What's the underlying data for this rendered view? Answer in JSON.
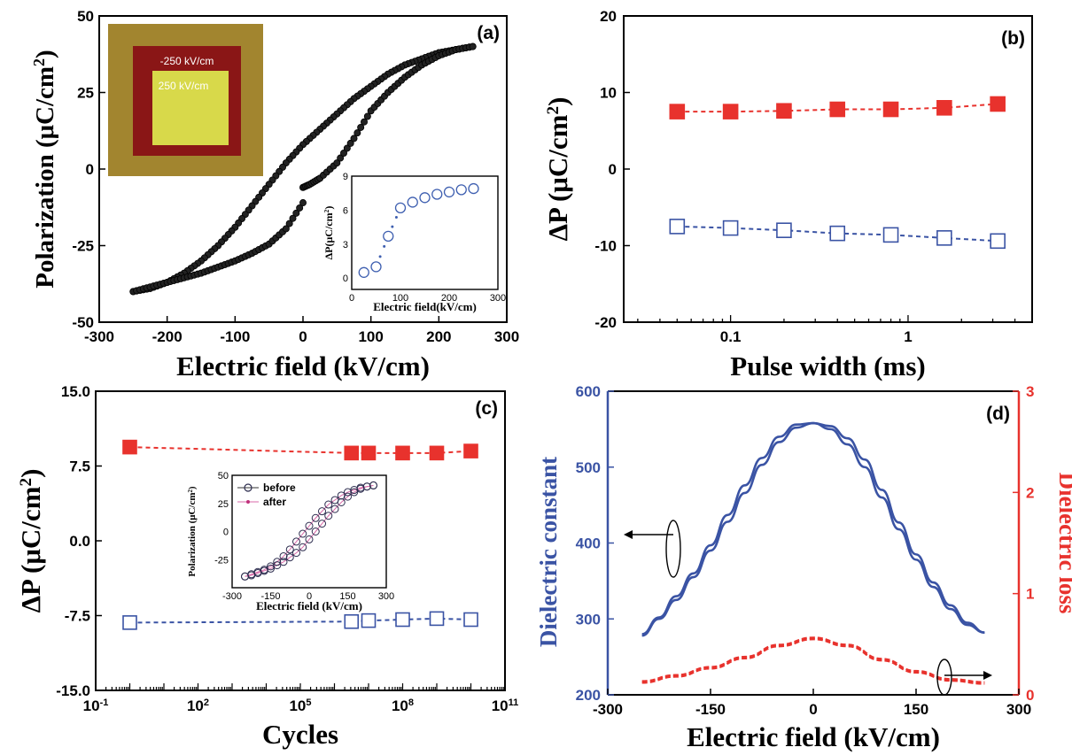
{
  "colors": {
    "blue": "#3a53a4",
    "red": "#e8322d",
    "black": "#000000",
    "inset_photo_outer": "#a2852f",
    "inset_photo_frame": "#8a1616",
    "inset_photo_center": "#d8d94a",
    "inset_photo_text": "#ffffff",
    "inset_blue": "#3e5fb0"
  },
  "chart_data": [
    {
      "id": "a",
      "type": "scatter",
      "panel_label": "(a)",
      "xlabel": "Electric field (kV/cm)",
      "ylabel_main": "Polarization (μC/cm",
      "ylabel_sup": "2",
      "ylabel_end": ")",
      "xlim": [
        -300,
        300
      ],
      "ylim": [
        -50,
        50
      ],
      "xticks": [
        -300,
        -200,
        -100,
        0,
        100,
        200,
        300
      ],
      "yticks": [
        -50,
        -25,
        0,
        25,
        50
      ],
      "marker": "filled-circle-black",
      "series": [
        {
          "x": [
            250,
            225,
            200,
            175,
            150,
            125,
            100,
            75,
            50,
            25,
            0,
            -25,
            -50,
            -75,
            -100,
            -125,
            -150,
            -175,
            -200,
            -225,
            -250
          ],
          "y": [
            40,
            39,
            38,
            36,
            34,
            31,
            27,
            23,
            18,
            13,
            8,
            2,
            -5,
            -12,
            -19,
            -25,
            -30,
            -34,
            -37,
            -39,
            -40
          ]
        },
        {
          "x": [
            -250,
            -225,
            -200,
            -175,
            -150,
            -125,
            -100,
            -75,
            -50,
            -25,
            0
          ],
          "y": [
            -40,
            -38.5,
            -37,
            -35.5,
            -34,
            -32,
            -30,
            -27.5,
            -24.5,
            -19.5,
            -11
          ]
        },
        {
          "x": [
            0,
            10,
            25,
            50,
            75,
            100,
            125,
            150,
            175,
            200,
            225,
            250
          ],
          "y": [
            -6,
            -5,
            -3,
            2,
            10,
            19,
            25,
            30,
            34,
            37,
            39,
            40
          ]
        }
      ],
      "inset_photo": {
        "label_top": "-250 kV/cm",
        "label_center": "250 kV/cm"
      },
      "inset_chart": {
        "type": "scatter",
        "marker": "open-circle-blue",
        "xlabel": "Electric field(kV/cm)",
        "ylabel_main": "ΔP(μC/cm",
        "ylabel_sup": "2",
        "ylabel_end": ")",
        "xlim": [
          0,
          300
        ],
        "ylim": [
          -1,
          9
        ],
        "xticks": [
          0,
          100,
          200,
          300
        ],
        "yticks": [
          0,
          3,
          6,
          9
        ],
        "x": [
          25,
          50,
          75,
          100,
          125,
          150,
          175,
          200,
          225,
          250
        ],
        "y": [
          0.5,
          1.0,
          3.7,
          6.2,
          6.7,
          7.1,
          7.4,
          7.6,
          7.8,
          7.9
        ]
      }
    },
    {
      "id": "b",
      "type": "line",
      "panel_label": "(b)",
      "xlabel": "Pulse width (ms)",
      "ylabel_main": "ΔP (μC/cm",
      "ylabel_sup": "2",
      "ylabel_end": ")",
      "xscale": "log",
      "xlim": [
        0.025,
        5
      ],
      "ylim": [
        -20,
        20
      ],
      "xticks": [
        0.1,
        1
      ],
      "xtick_labels": [
        "0.1",
        "1"
      ],
      "yticks": [
        -20,
        -10,
        0,
        10,
        20
      ],
      "x": [
        0.05,
        0.1,
        0.2,
        0.4,
        0.8,
        1.6,
        3.2
      ],
      "series": [
        {
          "style": "filled-square-red",
          "values": [
            7.5,
            7.5,
            7.6,
            7.8,
            7.8,
            8.0,
            8.5
          ]
        },
        {
          "style": "open-square-blue",
          "values": [
            -7.5,
            -7.7,
            -8.0,
            -8.4,
            -8.6,
            -9.0,
            -9.4
          ]
        }
      ]
    },
    {
      "id": "c",
      "type": "line",
      "panel_label": "(c)",
      "xlabel": "Cycles",
      "ylabel_main": "ΔP (μC/cm",
      "ylabel_sup": "2",
      "ylabel_end": ")",
      "xscale": "log",
      "xlim_exp": [
        -1,
        11
      ],
      "ylim": [
        -15,
        15
      ],
      "xticks_exp": [
        -1,
        2,
        5,
        8,
        11
      ],
      "xtick_base": "10",
      "yticks": [
        -15.0,
        -7.5,
        0.0,
        7.5,
        15.0
      ],
      "ytick_labels": [
        "-15.0",
        "-7.5",
        "0.0",
        "7.5",
        "15.0"
      ],
      "x_exp": [
        0,
        6.5,
        7,
        7.5,
        8,
        8.5,
        9,
        10
      ],
      "series": [
        {
          "style": "filled-square-red",
          "x_exp": [
            0,
            6.5,
            7,
            8,
            9,
            10
          ],
          "values": [
            9.4,
            8.8,
            8.8,
            8.8,
            8.8,
            9.0
          ]
        },
        {
          "style": "open-square-blue",
          "x_exp": [
            0,
            6.5,
            7,
            8,
            9,
            10
          ],
          "values": [
            -8.2,
            -8.1,
            -8.0,
            -7.9,
            -7.8,
            -7.9
          ]
        }
      ],
      "inset_chart": {
        "type": "scatter",
        "xlabel": "Electric field (kV/cm)",
        "ylabel_main": "Polarization (μC/cm",
        "ylabel_sup": "2",
        "ylabel_end": ")",
        "xlim": [
          -300,
          300
        ],
        "ylim": [
          -50,
          50
        ],
        "xticks": [
          -300,
          -150,
          0,
          150,
          300
        ],
        "yticks": [
          -25,
          0,
          25,
          50
        ],
        "ytick_labels": [
          "-25",
          "0",
          "25",
          "50"
        ],
        "legend": [
          "before",
          "after"
        ],
        "x_upper": [
          -250,
          -225,
          -200,
          -175,
          -150,
          -125,
          -100,
          -75,
          -50,
          -25,
          0,
          25,
          50,
          75,
          100,
          125,
          150,
          175,
          200,
          225,
          250
        ],
        "y_upper": [
          -40,
          -38,
          -36,
          -34,
          -31,
          -27,
          -22,
          -16,
          -9,
          -2,
          5,
          12,
          18,
          24,
          28,
          32,
          35,
          37,
          39,
          40,
          41
        ],
        "x_lower": [
          -250,
          -225,
          -200,
          -175,
          -150,
          -125,
          -100,
          -75,
          -50,
          -25,
          0,
          25,
          50,
          75,
          100,
          125,
          150,
          175,
          200,
          225,
          250
        ],
        "y_lower": [
          -40,
          -39,
          -37,
          -35,
          -33,
          -30,
          -27,
          -23,
          -19,
          -14,
          -7,
          0,
          7,
          14,
          20,
          26,
          31,
          35,
          38,
          40,
          41
        ]
      }
    },
    {
      "id": "d",
      "type": "line",
      "panel_label": "(d)",
      "xlabel": "Electric field (kV/cm)",
      "ylabel_left": "Dielectric constant",
      "ylabel_right": "Dielectric loss",
      "xlim": [
        -300,
        300
      ],
      "ylim_left": [
        200,
        600
      ],
      "ylim_right": [
        0,
        3
      ],
      "xticks": [
        -300,
        -150,
        0,
        150,
        300
      ],
      "yticks_left": [
        200,
        300,
        400,
        500,
        600
      ],
      "yticks_right": [
        0,
        1,
        2,
        3
      ],
      "series": [
        {
          "name": "",
          "axis": "left",
          "style": "solid-blue",
          "x": [
            -250,
            -225,
            -200,
            -175,
            -150,
            -125,
            -100,
            -75,
            -50,
            -25,
            0,
            25,
            50,
            75,
            100,
            125,
            150,
            175,
            200,
            225,
            250
          ],
          "up": [
            278,
            300,
            325,
            355,
            390,
            428,
            466,
            503,
            533,
            552,
            558,
            554,
            538,
            510,
            470,
            427,
            385,
            348,
            318,
            295,
            282
          ],
          "down": [
            280,
            302,
            330,
            360,
            397,
            437,
            476,
            512,
            540,
            556,
            558,
            550,
            530,
            500,
            460,
            418,
            378,
            342,
            313,
            292,
            282
          ]
        },
        {
          "name": "",
          "axis": "right",
          "style": "dashed-red",
          "x": [
            -250,
            -200,
            -150,
            -100,
            -50,
            0,
            50,
            100,
            150,
            200,
            250
          ],
          "values": [
            0.12,
            0.18,
            0.26,
            0.36,
            0.48,
            0.55,
            0.48,
            0.34,
            0.22,
            0.14,
            0.11
          ]
        }
      ]
    }
  ]
}
